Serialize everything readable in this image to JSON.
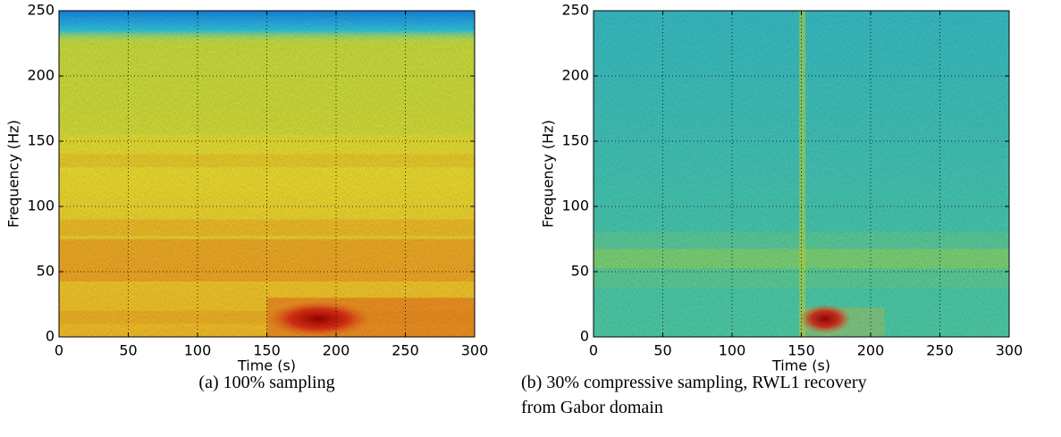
{
  "chart_data": [
    {
      "type": "spectrogram",
      "xlabel": "Time (s)",
      "ylabel": "Frequency (Hz)",
      "xlim": [
        0,
        300
      ],
      "ylim": [
        0,
        250
      ],
      "xticks": [
        0,
        50,
        100,
        150,
        200,
        250,
        300
      ],
      "yticks": [
        0,
        50,
        100,
        150,
        200,
        250
      ],
      "grid": true,
      "caption": "(a) 100% sampling"
    },
    {
      "type": "spectrogram",
      "xlabel": "Time (s)",
      "ylabel": "Frequency (Hz)",
      "xlim": [
        0,
        300
      ],
      "ylim": [
        0,
        250
      ],
      "xticks": [
        0,
        50,
        100,
        150,
        200,
        250,
        300
      ],
      "yticks": [
        0,
        50,
        100,
        150,
        200,
        250
      ],
      "grid": true,
      "caption": "(b) 30% compressive sampling, RWL1 recovery from Gabor domain"
    }
  ]
}
